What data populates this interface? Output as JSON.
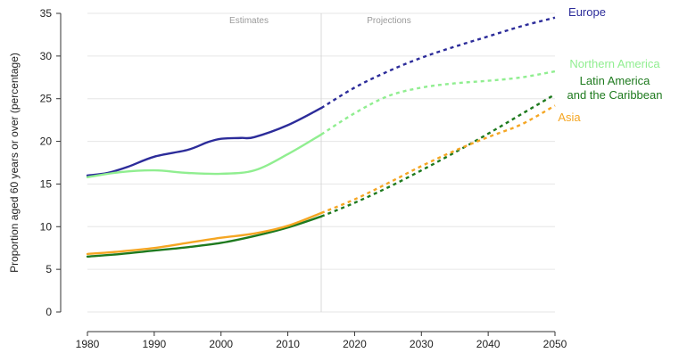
{
  "chart_data": {
    "type": "line",
    "title": "",
    "xlabel": "",
    "ylabel": "Proportion aged 60 years or over (percentage)",
    "xlim": [
      1980,
      2050
    ],
    "ylim": [
      0,
      35
    ],
    "x_ticks": [
      "1980",
      "1990",
      "2000",
      "2010",
      "2020",
      "2030",
      "2040",
      "2050"
    ],
    "y_ticks": [
      "0",
      "5",
      "10",
      "15",
      "20",
      "25",
      "30",
      "35"
    ],
    "grid": "horizontal",
    "divider_year": 2015,
    "region_labels": {
      "estimates": "Estimates",
      "projections": "Projections"
    },
    "series": [
      {
        "name": "Europe",
        "label_lines": [
          "Europe"
        ],
        "color": "#2c2c9a",
        "estimates": [
          [
            1980,
            16.0
          ],
          [
            1983,
            16.3
          ],
          [
            1986,
            17.0
          ],
          [
            1990,
            18.2
          ],
          [
            1995,
            19.0
          ],
          [
            1998,
            19.9
          ],
          [
            2000,
            20.3
          ],
          [
            2003,
            20.4
          ],
          [
            2005,
            20.5
          ],
          [
            2010,
            21.9
          ],
          [
            2015,
            23.9
          ]
        ],
        "projections": [
          [
            2015,
            23.9
          ],
          [
            2020,
            26.3
          ],
          [
            2025,
            28.2
          ],
          [
            2030,
            29.8
          ],
          [
            2035,
            31.1
          ],
          [
            2040,
            32.3
          ],
          [
            2045,
            33.5
          ],
          [
            2050,
            34.5
          ]
        ]
      },
      {
        "name": "Northern America",
        "label_lines": [
          "Northern America"
        ],
        "color": "#90ee90",
        "estimates": [
          [
            1980,
            15.8
          ],
          [
            1985,
            16.4
          ],
          [
            1990,
            16.6
          ],
          [
            1995,
            16.3
          ],
          [
            2000,
            16.2
          ],
          [
            2005,
            16.6
          ],
          [
            2010,
            18.5
          ],
          [
            2015,
            20.8
          ]
        ],
        "projections": [
          [
            2015,
            20.8
          ],
          [
            2020,
            23.3
          ],
          [
            2025,
            25.3
          ],
          [
            2030,
            26.3
          ],
          [
            2035,
            26.8
          ],
          [
            2040,
            27.1
          ],
          [
            2045,
            27.5
          ],
          [
            2050,
            28.2
          ]
        ]
      },
      {
        "name": "Latin America and the Caribbean",
        "label_lines": [
          "Latin America",
          "and the Caribbean"
        ],
        "color": "#1e7a1e",
        "estimates": [
          [
            1980,
            6.5
          ],
          [
            1985,
            6.8
          ],
          [
            1990,
            7.2
          ],
          [
            1995,
            7.6
          ],
          [
            2000,
            8.1
          ],
          [
            2005,
            8.9
          ],
          [
            2010,
            9.9
          ],
          [
            2015,
            11.2
          ]
        ],
        "projections": [
          [
            2015,
            11.2
          ],
          [
            2020,
            12.8
          ],
          [
            2025,
            14.6
          ],
          [
            2030,
            16.6
          ],
          [
            2035,
            18.7
          ],
          [
            2040,
            20.9
          ],
          [
            2045,
            23.2
          ],
          [
            2050,
            25.5
          ]
        ]
      },
      {
        "name": "Asia",
        "label_lines": [
          "Asia"
        ],
        "color": "#f5a623",
        "estimates": [
          [
            1980,
            6.8
          ],
          [
            1985,
            7.1
          ],
          [
            1990,
            7.5
          ],
          [
            1995,
            8.1
          ],
          [
            2000,
            8.7
          ],
          [
            2005,
            9.2
          ],
          [
            2010,
            10.1
          ],
          [
            2015,
            11.6
          ]
        ],
        "projections": [
          [
            2015,
            11.6
          ],
          [
            2020,
            13.2
          ],
          [
            2025,
            15.1
          ],
          [
            2030,
            17.1
          ],
          [
            2035,
            18.9
          ],
          [
            2040,
            20.5
          ],
          [
            2045,
            22.0
          ],
          [
            2050,
            24.2
          ]
        ]
      }
    ]
  }
}
